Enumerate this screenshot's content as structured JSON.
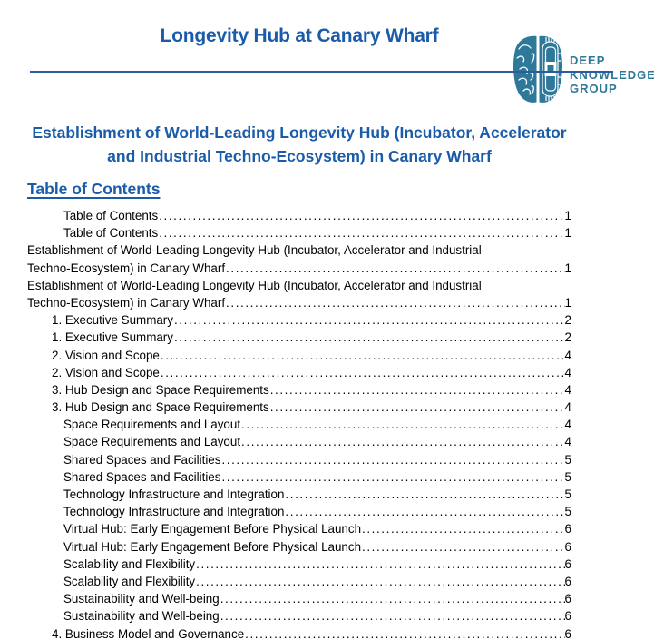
{
  "doc": {
    "title": "Longevity Hub at Canary Wharf",
    "heading": "Establishment of World-Leading Longevity Hub (Incubator, Accelerator and Industrial Techno-Ecosystem) in Canary Wharf",
    "toc_heading": "Table of Contents"
  },
  "logo": {
    "lines": [
      "DEEP",
      "KNOWLEDGE",
      "GROUP"
    ]
  },
  "colors": {
    "heading_blue": "#1a5caa",
    "rule_blue": "#2b5c9f",
    "logo_teal": "#2e7899",
    "body_text": "#000000"
  },
  "toc": {
    "rows": [
      {
        "text": "Table of Contents",
        "page": "1",
        "indent": 2
      },
      {
        "text": "Table of Contents",
        "page": "1",
        "indent": 2
      },
      {
        "text": "Establishment of World-Leading Longevity Hub (Incubator, Accelerator and Industrial",
        "page": null,
        "indent": 0
      },
      {
        "text": "Techno-Ecosystem) in Canary Wharf",
        "page": "1",
        "indent": 0
      },
      {
        "text": "Establishment of World-Leading Longevity Hub (Incubator, Accelerator and Industrial",
        "page": null,
        "indent": 0
      },
      {
        "text": "Techno-Ecosystem) in Canary Wharf",
        "page": "1",
        "indent": 0
      },
      {
        "text": "1. Executive Summary",
        "page": "2",
        "indent": 1
      },
      {
        "text": "1. Executive Summary",
        "page": "2",
        "indent": 1
      },
      {
        "text": "2. Vision and Scope",
        "page": "4",
        "indent": 1
      },
      {
        "text": "2. Vision and Scope",
        "page": "4",
        "indent": 1
      },
      {
        "text": "3. Hub Design and Space Requirements",
        "page": "4",
        "indent": 1
      },
      {
        "text": "3. Hub Design and Space Requirements",
        "page": "4",
        "indent": 1
      },
      {
        "text": "Space Requirements and Layout",
        "page": "4",
        "indent": 2
      },
      {
        "text": "Space Requirements and Layout",
        "page": "4",
        "indent": 2
      },
      {
        "text": "Shared Spaces and Facilities",
        "page": "5",
        "indent": 2
      },
      {
        "text": "Shared Spaces and Facilities",
        "page": "5",
        "indent": 2
      },
      {
        "text": "Technology Infrastructure and Integration",
        "page": "5",
        "indent": 2
      },
      {
        "text": "Technology Infrastructure and Integration",
        "page": "5",
        "indent": 2
      },
      {
        "text": "Virtual Hub: Early Engagement Before Physical Launch",
        "page": "6",
        "indent": 2
      },
      {
        "text": "Virtual Hub: Early Engagement Before Physical Launch",
        "page": "6",
        "indent": 2
      },
      {
        "text": "Scalability and Flexibility",
        "page": "6",
        "indent": 2
      },
      {
        "text": "Scalability and Flexibility",
        "page": "6",
        "indent": 2
      },
      {
        "text": "Sustainability and Well-being",
        "page": "6",
        "indent": 2
      },
      {
        "text": "Sustainability and Well-being",
        "page": "6",
        "indent": 2
      },
      {
        "text": "4. Business Model and Governance",
        "page": "6",
        "indent": 1
      }
    ]
  }
}
